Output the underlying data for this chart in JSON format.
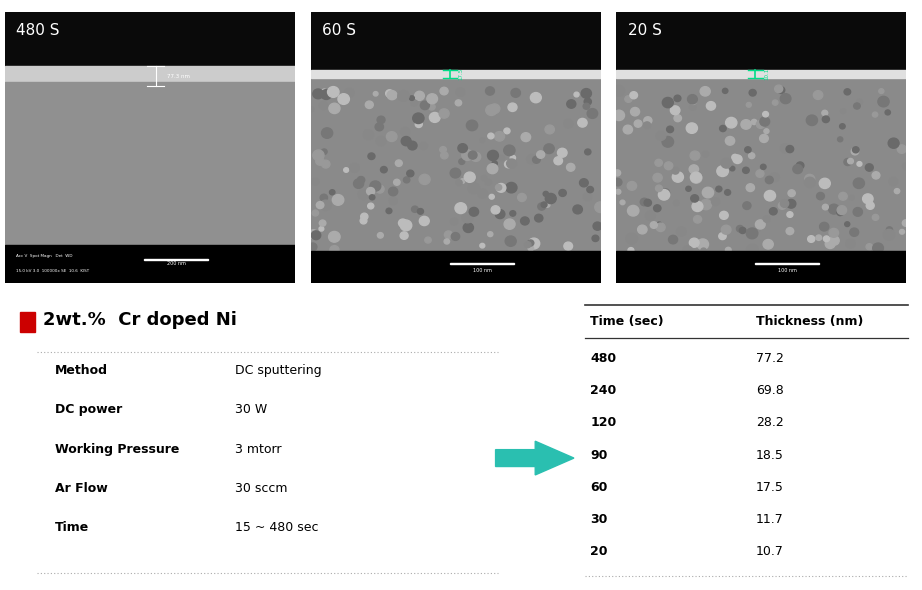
{
  "title": "2wt.%  Cr doped Ni",
  "bullet_color": "#cc0000",
  "params": [
    {
      "label": "Method",
      "value": "DC sputtering"
    },
    {
      "label": "DC power",
      "value": "30 W"
    },
    {
      "label": "Working Pressure",
      "value": "3 mtorr"
    },
    {
      "label": "Ar Flow",
      "value": "30 sccm"
    },
    {
      "label": "Time",
      "value": "15 ~ 480 sec"
    }
  ],
  "table_header": [
    "Time (sec)",
    "Thickness (nm)"
  ],
  "table_data": [
    [
      "480",
      "77.2"
    ],
    [
      "240",
      "69.8"
    ],
    [
      "120",
      "28.2"
    ],
    [
      "90",
      "18.5"
    ],
    [
      "60",
      "17.5"
    ],
    [
      "30",
      "11.7"
    ],
    [
      "20",
      "10.7"
    ]
  ],
  "arrow_color": "#2abfb0",
  "sem_labels": [
    "480 S",
    "60 S",
    "20 S"
  ],
  "bg_color": "#ffffff",
  "text_color": "#000000"
}
